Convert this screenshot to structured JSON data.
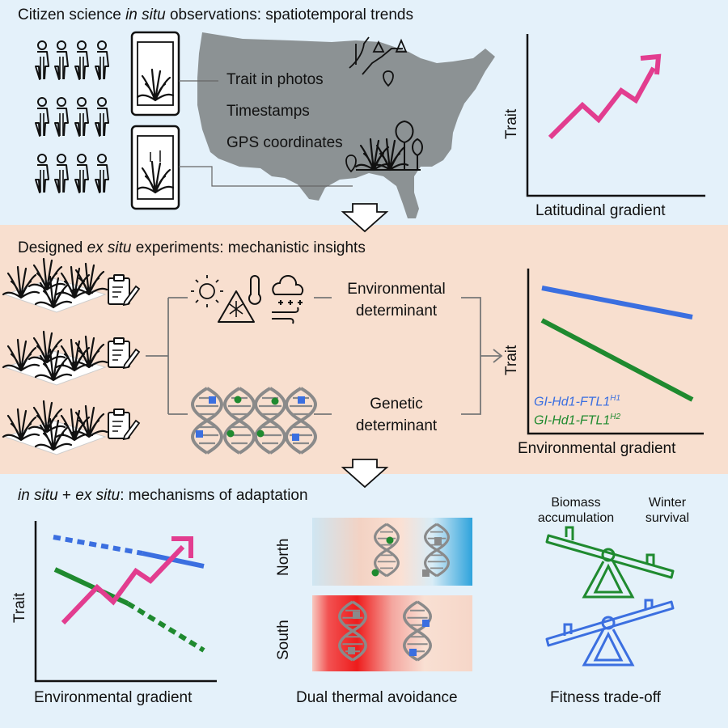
{
  "sections": {
    "top": {
      "title_prefix": "Citizen science ",
      "title_italic": "in situ",
      "title_suffix": " observations: spatiotemporal trends",
      "map_labels": [
        "Trait in photos",
        "Timestamps",
        "GPS coordinates"
      ],
      "chart": {
        "ylabel": "Trait",
        "xlabel": "Latitudinal gradient"
      }
    },
    "middle": {
      "title_prefix": "Designed ",
      "title_italic": "ex situ",
      "title_suffix": " experiments: mechanistic insights",
      "env_label_line1": "Environmental",
      "env_label_line2": "determinant",
      "gen_label_line1": "Genetic",
      "gen_label_line2": "determinant",
      "chart": {
        "ylabel": "Trait",
        "xlabel": "Environmental gradient",
        "legend": [
          {
            "base": "GI-Hd1-FTL1",
            "sup": "H1",
            "color": "#3b6fe0"
          },
          {
            "base": "GI-Hd1-FTL1",
            "sup": "H2",
            "color": "#1f8a2f"
          }
        ]
      }
    },
    "bottom": {
      "title_italic1": "in situ",
      "title_mid": " + ",
      "title_italic2": "ex situ",
      "title_suffix": ": mechanisms of adaptation",
      "chart": {
        "ylabel": "Trait",
        "xlabel": "Environmental gradient"
      },
      "thermal": {
        "north": "North",
        "south": "South",
        "caption": "Dual thermal avoidance"
      },
      "seesaw": {
        "left_line1": "Biomass",
        "left_line2": "accumulation",
        "right_line1": "Winter",
        "right_line2": "survival",
        "caption": "Fitness trade-off"
      }
    }
  },
  "colors": {
    "top_bg": "#e4f1fa",
    "mid_bg": "#f8dfcf",
    "bot_bg": "#e4f1fa",
    "map_gray": "#8c9294",
    "pink": "#e23d8f",
    "blue": "#3b6fe0",
    "green": "#1f8a2f",
    "dna_gray": "#8a8a8a"
  }
}
